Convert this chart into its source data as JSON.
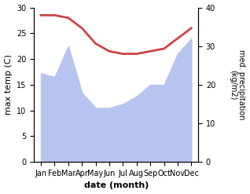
{
  "months": [
    "Jan",
    "Feb",
    "Mar",
    "Apr",
    "May",
    "Jun",
    "Jul",
    "Aug",
    "Sep",
    "Oct",
    "Nov",
    "Dec"
  ],
  "temperature": [
    28.5,
    28.5,
    28.0,
    26.0,
    23.0,
    21.5,
    21.0,
    21.0,
    21.5,
    22.0,
    24.0,
    26.0
  ],
  "precipitation": [
    23,
    22,
    30,
    18,
    14,
    14,
    15,
    17,
    20,
    20,
    28,
    32
  ],
  "temp_color": "#cc4444",
  "precip_color": "#b8c4f0",
  "temp_ylim": [
    0,
    30
  ],
  "precip_ylim": [
    0,
    40
  ],
  "temp_yticks": [
    0,
    5,
    10,
    15,
    20,
    25,
    30
  ],
  "precip_yticks": [
    0,
    10,
    20,
    30,
    40
  ],
  "xlabel": "date (month)",
  "ylabel_left": "max temp (C)",
  "ylabel_right": "med. precipitation\n(kg/m2)",
  "temp_lw": 2.0,
  "figsize": [
    3.18,
    2.47
  ],
  "dpi": 100
}
